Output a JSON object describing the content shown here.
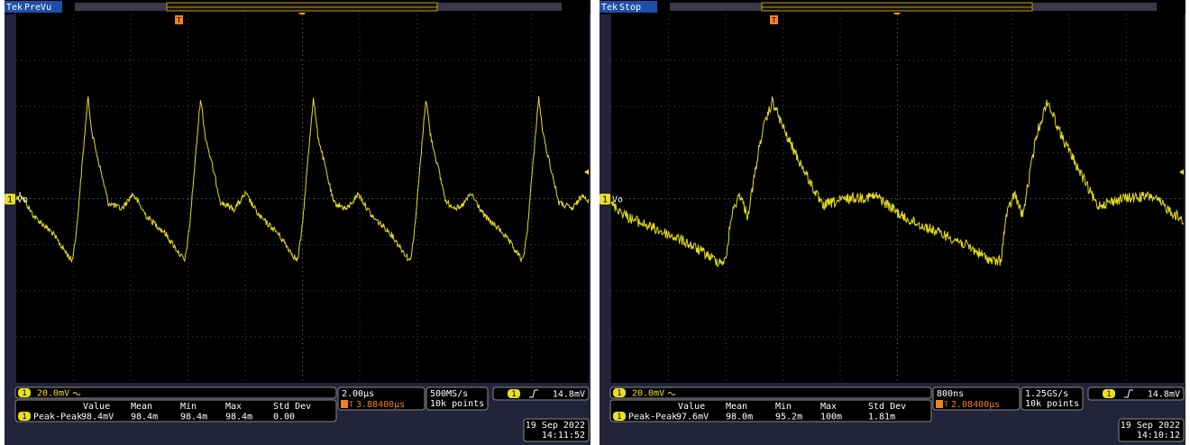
{
  "screens": [
    {
      "brand": "Tek",
      "status": "PreVu",
      "trigger_marker": "T",
      "channel_marker": "1",
      "channel_label": "Vo",
      "channel_number": "1",
      "scale": "20.0mV",
      "measurement": {
        "headers": [
          "Value",
          "Mean",
          "Min",
          "Max",
          "Std Dev"
        ],
        "name": "Peak-Peak",
        "values": [
          "98.4mV",
          "98.4m",
          "98.4m",
          "98.4m",
          "0.00"
        ]
      },
      "timebase": "2.00µs",
      "trigger_position": "3.88400µs",
      "sample_rate": "500MS/s",
      "record_length": "10k points",
      "trigger_level": "14.8mV",
      "date": "19 Sep 2022",
      "time": "14:11:52"
    },
    {
      "brand": "Tek",
      "status": "Stop",
      "trigger_marker": "T",
      "channel_marker": "1",
      "channel_label": "Vo",
      "channel_number": "1",
      "scale": "20.0mV",
      "measurement": {
        "headers": [
          "Value",
          "Mean",
          "Min",
          "Max",
          "Std Dev"
        ],
        "name": "Peak-Peak",
        "values": [
          "97.6mV",
          "98.0m",
          "95.2m",
          "100m",
          "1.81m"
        ]
      },
      "timebase": "800ns",
      "trigger_position": "2.08400µs",
      "sample_rate": "1.25GS/s",
      "record_length": "10k points",
      "trigger_level": "14.8mV",
      "date": "19 Sep 2022",
      "time": "14:10:12"
    }
  ]
}
